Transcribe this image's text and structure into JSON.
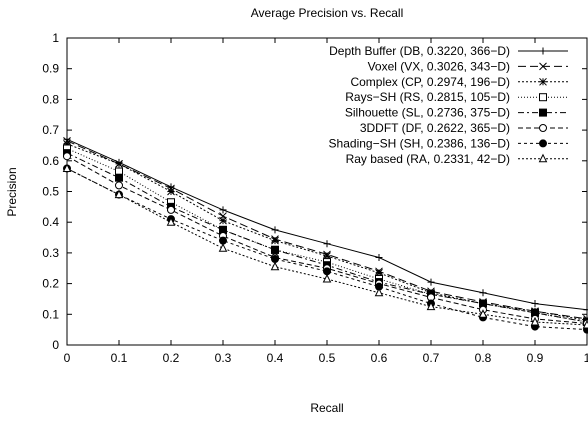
{
  "chart_data": {
    "type": "line",
    "title": "Average Precision vs. Recall",
    "xlabel": "Recall",
    "ylabel": "Precision",
    "xlim": [
      0,
      1
    ],
    "ylim": [
      0,
      1
    ],
    "grid": false,
    "legend_position": "top-right",
    "x": [
      0,
      0.1,
      0.2,
      0.3,
      0.4,
      0.5,
      0.6,
      0.7,
      0.8,
      0.9,
      1
    ],
    "x_tick_labels": [
      "0",
      "0.1",
      "0.2",
      "0.3",
      "0.4",
      "0.5",
      "0.6",
      "0.7",
      "0.8",
      "0.9",
      "1"
    ],
    "y_tick_labels": [
      "0",
      "0.1",
      "0.2",
      "0.3",
      "0.4",
      "0.5",
      "0.6",
      "0.7",
      "0.8",
      "0.9",
      "1"
    ],
    "series": [
      {
        "name": "Depth Buffer (DB, 0.3220, 366−D)",
        "marker": "plus",
        "dash": "",
        "values": [
          0.67,
          0.595,
          0.515,
          0.44,
          0.375,
          0.33,
          0.285,
          0.205,
          0.17,
          0.135,
          0.115
        ]
      },
      {
        "name": "Voxel (VX, 0.3026, 343−D)",
        "marker": "x",
        "dash": "8 4",
        "values": [
          0.665,
          0.59,
          0.51,
          0.42,
          0.345,
          0.295,
          0.24,
          0.175,
          0.14,
          0.11,
          0.085
        ]
      },
      {
        "name": "Complex (CP, 0.2974, 196−D)",
        "marker": "star",
        "dash": "2 2",
        "values": [
          0.655,
          0.59,
          0.5,
          0.405,
          0.34,
          0.29,
          0.235,
          0.17,
          0.135,
          0.11,
          0.08
        ]
      },
      {
        "name": "Rays−SH (RS, 0.2815, 105−D)",
        "marker": "square-open",
        "dash": "1 2",
        "values": [
          0.64,
          0.565,
          0.465,
          0.375,
          0.31,
          0.27,
          0.215,
          0.165,
          0.135,
          0.105,
          0.075
        ]
      },
      {
        "name": "Silhouette (SL, 0.2736, 375−D)",
        "marker": "square-filled",
        "dash": "6 3 2 3",
        "values": [
          0.625,
          0.545,
          0.45,
          0.375,
          0.31,
          0.26,
          0.205,
          0.165,
          0.135,
          0.105,
          0.075
        ]
      },
      {
        "name": "3DDFT (DF, 0.2622, 365−D)",
        "marker": "circle-open",
        "dash": "5 3",
        "values": [
          0.615,
          0.52,
          0.44,
          0.355,
          0.285,
          0.25,
          0.2,
          0.155,
          0.115,
          0.085,
          0.07
        ]
      },
      {
        "name": "Shading−SH (SH, 0.2386, 136−D)",
        "marker": "circle-filled",
        "dash": "3 3",
        "values": [
          0.575,
          0.49,
          0.41,
          0.34,
          0.28,
          0.24,
          0.19,
          0.135,
          0.09,
          0.06,
          0.05
        ]
      },
      {
        "name": "Ray based (RA, 0.2331, 42−D)",
        "marker": "triangle-open",
        "dash": "2 2",
        "values": [
          0.575,
          0.49,
          0.4,
          0.315,
          0.255,
          0.215,
          0.17,
          0.125,
          0.1,
          0.075,
          0.065
        ]
      }
    ]
  }
}
